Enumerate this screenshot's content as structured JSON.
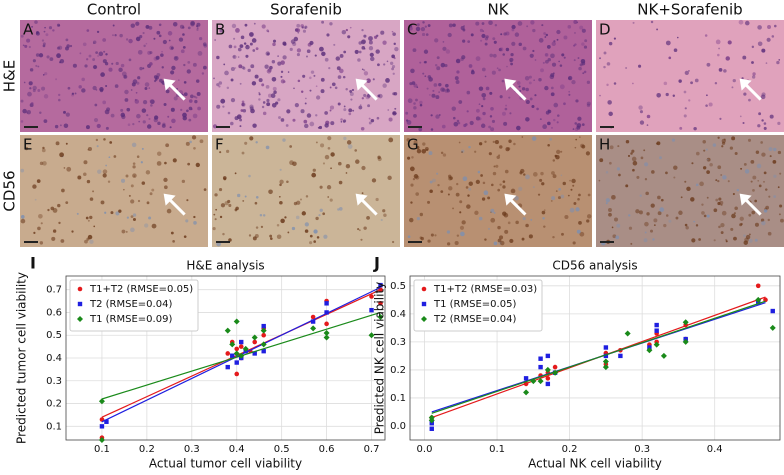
{
  "figure": {
    "columns": [
      "Control",
      "Sorafenib",
      "NK",
      "NK+Sorafenib"
    ],
    "rows": [
      "H&E",
      "CD56"
    ],
    "panels": [
      "A",
      "B",
      "C",
      "D",
      "E",
      "F",
      "G",
      "H"
    ]
  },
  "chart_data": [
    {
      "type": "scatter",
      "panel_label": "I",
      "title": "H&E analysis",
      "x_label": "Actual tumor cell viability",
      "y_label": "Predicted tumor cell viability",
      "xlim": [
        0.02,
        0.73
      ],
      "ylim": [
        0.04,
        0.76
      ],
      "xticks": [
        0.1,
        0.2,
        0.3,
        0.4,
        0.5,
        0.6,
        0.7
      ],
      "yticks": [
        0.1,
        0.2,
        0.3,
        0.4,
        0.5,
        0.6,
        0.7
      ],
      "grid": true,
      "legend": "upper left",
      "series": [
        {
          "name": "T1+T2 (RMSE=0.05)",
          "color": "#e41a1c",
          "marker": "circle",
          "x": [
            0.1,
            0.1,
            0.38,
            0.39,
            0.4,
            0.4,
            0.41,
            0.41,
            0.43,
            0.44,
            0.46,
            0.46,
            0.57,
            0.6,
            0.6,
            0.7,
            0.72,
            0.72
          ],
          "values": [
            0.05,
            0.13,
            0.42,
            0.47,
            0.33,
            0.44,
            0.45,
            0.4,
            0.43,
            0.47,
            0.53,
            0.5,
            0.58,
            0.65,
            0.55,
            0.67,
            0.64,
            0.7
          ],
          "fit_x": [
            0.1,
            0.72
          ],
          "fit_y": [
            0.14,
            0.7
          ]
        },
        {
          "name": "T2 (RMSE=0.04)",
          "color": "#1f1fe0",
          "marker": "square",
          "x": [
            0.1,
            0.11,
            0.38,
            0.39,
            0.4,
            0.41,
            0.41,
            0.42,
            0.44,
            0.46,
            0.46,
            0.57,
            0.6,
            0.6,
            0.7,
            0.72
          ],
          "values": [
            0.1,
            0.12,
            0.36,
            0.41,
            0.38,
            0.4,
            0.47,
            0.43,
            0.42,
            0.54,
            0.43,
            0.56,
            0.64,
            0.6,
            0.61,
            0.72
          ],
          "fit_x": [
            0.1,
            0.72
          ],
          "fit_y": [
            0.12,
            0.71
          ]
        },
        {
          "name": "T1 (RMSE=0.09)",
          "color": "#1a8a1a",
          "marker": "diamond",
          "x": [
            0.1,
            0.1,
            0.38,
            0.39,
            0.4,
            0.4,
            0.41,
            0.42,
            0.44,
            0.46,
            0.46,
            0.57,
            0.6,
            0.6,
            0.7,
            0.72
          ],
          "values": [
            0.21,
            0.04,
            0.52,
            0.46,
            0.56,
            0.42,
            0.41,
            0.44,
            0.49,
            0.52,
            0.46,
            0.53,
            0.51,
            0.49,
            0.5,
            0.58
          ],
          "fit_x": [
            0.1,
            0.72
          ],
          "fit_y": [
            0.22,
            0.6
          ]
        }
      ]
    },
    {
      "type": "scatter",
      "panel_label": "J",
      "title": "CD56 analysis",
      "x_label": "Actual NK cell viability",
      "y_label": "Predicted NK cell viability",
      "xlim": [
        -0.02,
        0.49
      ],
      "ylim": [
        -0.05,
        0.535
      ],
      "xticks": [
        {
          "value": 0,
          "label": "0.0"
        },
        0.1,
        0.2,
        0.3,
        0.4
      ],
      "yticks": [
        {
          "value": 0,
          "label": "0.0"
        },
        0.1,
        0.2,
        0.3,
        0.4,
        0.5
      ],
      "grid": true,
      "legend": "upper left",
      "series": [
        {
          "name": "T1+T2 (RMSE=0.03)",
          "color": "#e41a1c",
          "marker": "circle",
          "x": [
            0.01,
            0.01,
            0.14,
            0.16,
            0.17,
            0.17,
            0.18,
            0.25,
            0.25,
            0.27,
            0.31,
            0.32,
            0.32,
            0.36,
            0.36,
            0.46,
            0.47
          ],
          "values": [
            0.02,
            0.03,
            0.15,
            0.18,
            0.19,
            0.17,
            0.21,
            0.22,
            0.26,
            0.27,
            0.29,
            0.33,
            0.3,
            0.31,
            0.36,
            0.5,
            0.45
          ],
          "fit_x": [
            0.01,
            0.47
          ],
          "fit_y": [
            0.03,
            0.46
          ]
        },
        {
          "name": "T1 (RMSE=0.05)",
          "color": "#1f1fe0",
          "marker": "square",
          "x": [
            0.01,
            0.01,
            0.14,
            0.16,
            0.16,
            0.17,
            0.17,
            0.18,
            0.25,
            0.25,
            0.27,
            0.31,
            0.32,
            0.32,
            0.36,
            0.46,
            0.48
          ],
          "values": [
            0.01,
            -0.01,
            0.17,
            0.21,
            0.24,
            0.15,
            0.25,
            0.19,
            0.25,
            0.28,
            0.25,
            0.28,
            0.36,
            0.34,
            0.31,
            0.44,
            0.41
          ],
          "fit_x": [
            0.01,
            0.47
          ],
          "fit_y": [
            0.05,
            0.44
          ]
        },
        {
          "name": "T2 (RMSE=0.04)",
          "color": "#1a8a1a",
          "marker": "diamond",
          "x": [
            0.01,
            0.01,
            0.14,
            0.15,
            0.16,
            0.17,
            0.18,
            0.25,
            0.25,
            0.28,
            0.31,
            0.32,
            0.33,
            0.36,
            0.36,
            0.46,
            0.48
          ],
          "values": [
            0.03,
            0.02,
            0.12,
            0.16,
            0.16,
            0.2,
            0.19,
            0.21,
            0.23,
            0.33,
            0.27,
            0.29,
            0.25,
            0.37,
            0.3,
            0.45,
            0.35
          ],
          "fit_x": [
            0.01,
            0.47
          ],
          "fit_y": [
            0.045,
            0.445
          ]
        }
      ]
    }
  ]
}
